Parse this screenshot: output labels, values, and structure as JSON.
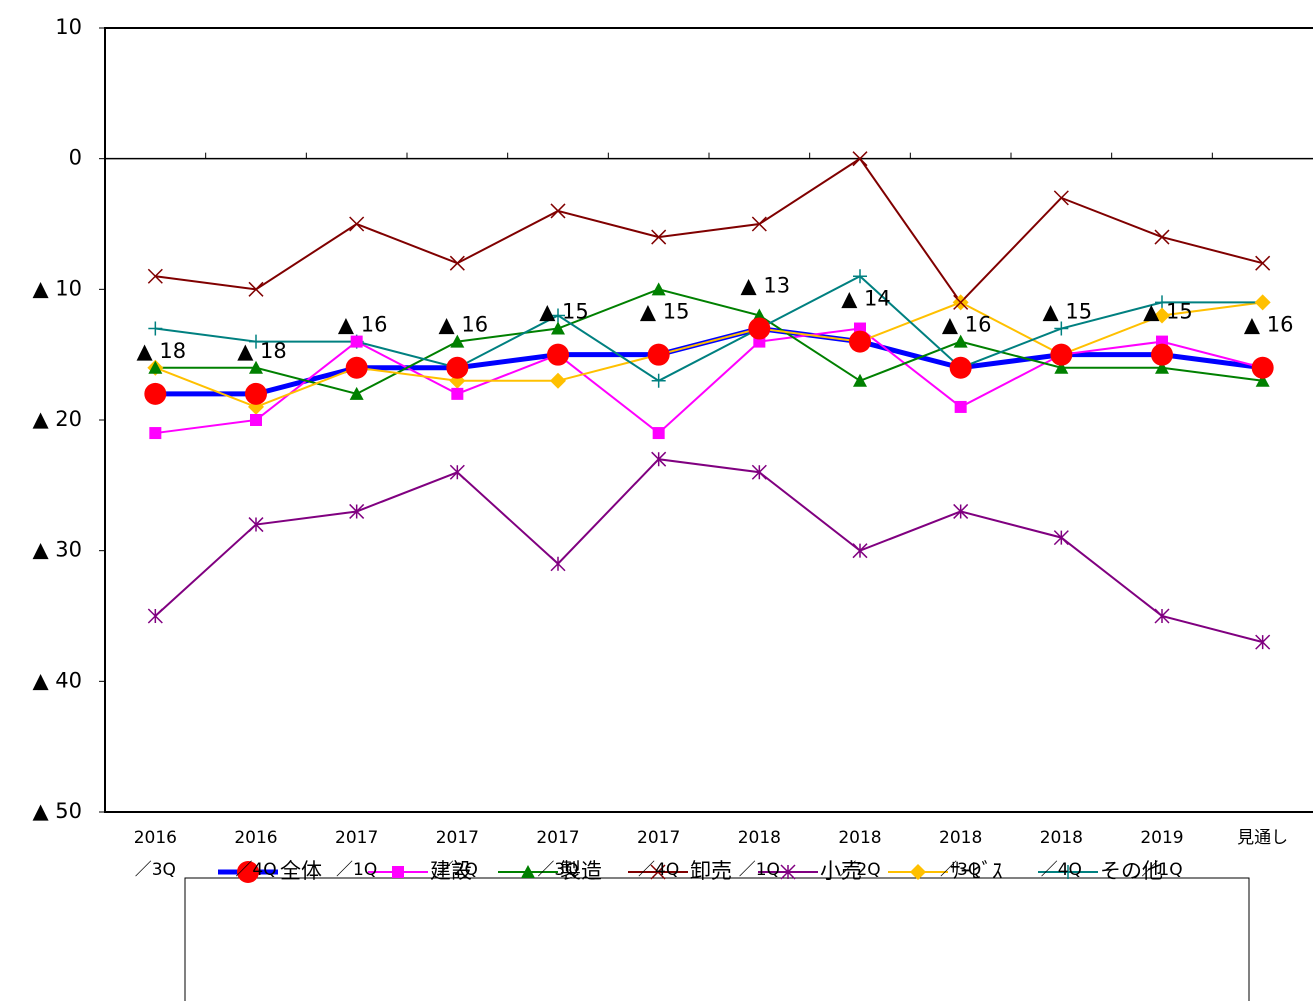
{
  "chart_data": {
    "type": "line",
    "categories": [
      "2016\n／3Q",
      "2016\n／4Q",
      "2017\n／1Q",
      "2017\n／2Q",
      "2017\n／3Q",
      "2017\n／4Q",
      "2018\n／1Q",
      "2018\n／2Q",
      "2018\n／3Q",
      "2018\n／4Q",
      "2019\n／1Q",
      "見通し"
    ],
    "ylim": [
      -50,
      10
    ],
    "yticks": [
      {
        "value": -50,
        "label": "▲ 50"
      },
      {
        "value": -40,
        "label": "▲ 40"
      },
      {
        "value": -30,
        "label": "▲ 30"
      },
      {
        "value": -20,
        "label": "▲ 20"
      },
      {
        "value": -10,
        "label": "▲ 10"
      },
      0,
      10
    ],
    "forecast_dashed": true,
    "series": [
      {
        "name": "全体",
        "color": "#0000ff",
        "marker": "circle",
        "marker_color": "#ff0000",
        "line_width": 5,
        "values": [
          -18,
          -18,
          -16,
          -16,
          -15,
          -15,
          -13,
          -14,
          -16,
          -15,
          -15,
          -16
        ],
        "value_labels": [
          "▲ 18",
          "▲ 18",
          "▲ 16",
          "▲ 16",
          "▲ 15",
          "▲ 15",
          "▲ 13",
          "▲ 14",
          "▲ 16",
          "▲ 15",
          "▲ 15",
          "▲ 16"
        ]
      },
      {
        "name": "建設",
        "color": "#ff00ff",
        "marker": "square",
        "line_width": 2,
        "values": [
          -21,
          -20,
          -14,
          -18,
          -15,
          -21,
          -14,
          -13,
          -19,
          -15,
          -14,
          -16
        ]
      },
      {
        "name": "製造",
        "color": "#008000",
        "marker": "triangle",
        "line_width": 2,
        "values": [
          -16,
          -16,
          -18,
          -14,
          -13,
          -10,
          -12,
          -17,
          -14,
          -16,
          -16,
          -17
        ]
      },
      {
        "name": "卸売",
        "color": "#800000",
        "marker": "x",
        "line_width": 2,
        "values": [
          -9,
          -10,
          -5,
          -8,
          -4,
          -6,
          -5,
          0,
          -11,
          -3,
          -6,
          -8
        ]
      },
      {
        "name": "小売",
        "color": "#800080",
        "marker": "star",
        "line_width": 2,
        "values": [
          -35,
          -28,
          -27,
          -24,
          -31,
          -23,
          -24,
          -30,
          -27,
          -29,
          -35,
          -37
        ]
      },
      {
        "name": "ｻｰﾋﾞｽ",
        "color": "#ffc000",
        "marker": "diamond",
        "line_width": 2,
        "values": [
          -16,
          -19,
          -16,
          -17,
          -17,
          -15,
          -13,
          -14,
          -11,
          -15,
          -12,
          -11
        ]
      },
      {
        "name": "その他",
        "color": "#008080",
        "marker": "plus",
        "line_width": 2,
        "values": [
          -13,
          -14,
          -14,
          -16,
          -12,
          -17,
          -13,
          -9,
          -16,
          -13,
          -11,
          -11
        ]
      }
    ]
  }
}
